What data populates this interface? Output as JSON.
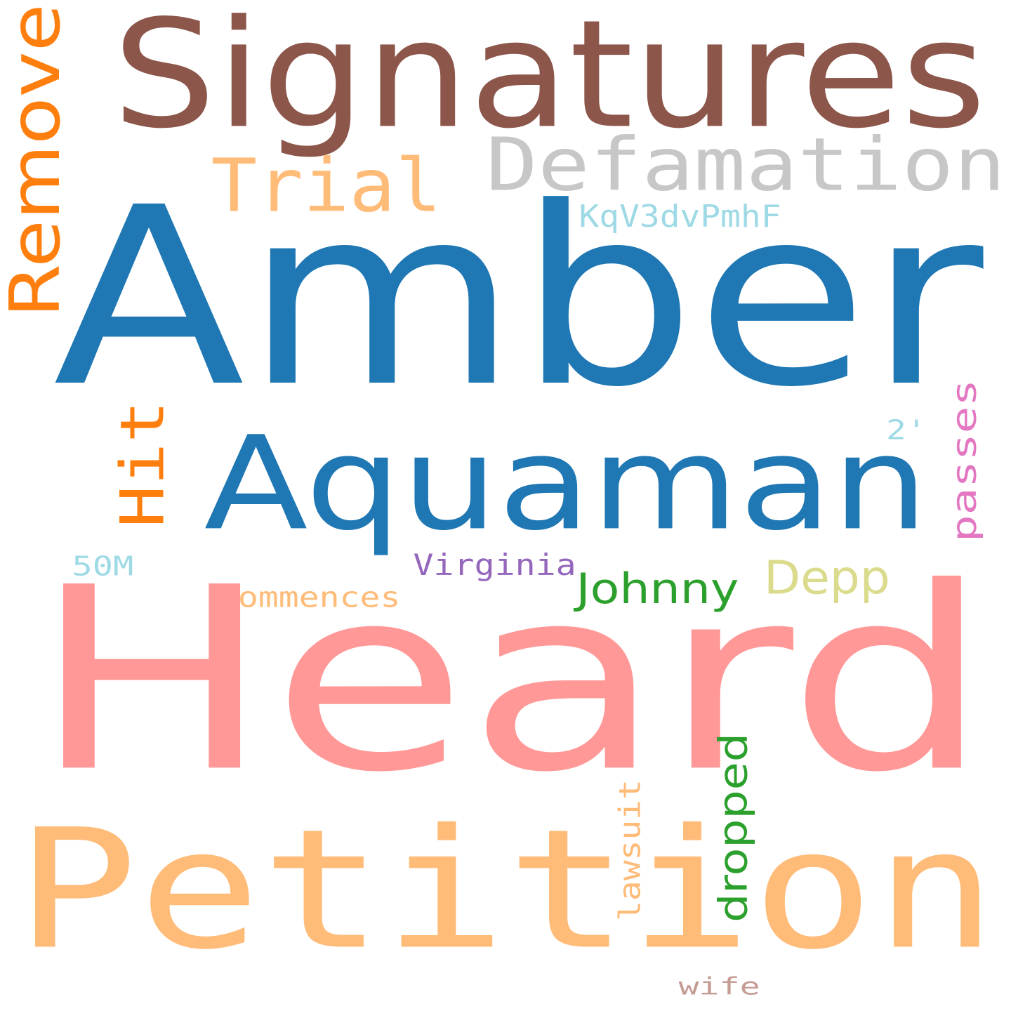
{
  "words": {
    "signatures": {
      "text": "Signatures",
      "color": "#8c564b"
    },
    "remove": {
      "text": "Remove",
      "color": "#ff7f0e"
    },
    "defamation": {
      "text": "Defamation",
      "color": "#c7c7c7"
    },
    "trial": {
      "text": "Trial",
      "color": "#ffbb78"
    },
    "kqv": {
      "text": "KqV3dvPmhF",
      "color": "#9edae5"
    },
    "amber": {
      "text": "Amber",
      "color": "#1f77b4"
    },
    "hit": {
      "text": "Hit",
      "color": "#ff7f0e"
    },
    "aquaman": {
      "text": "Aquaman",
      "color": "#1f77b4"
    },
    "passes": {
      "text": "passes",
      "color": "#e377c2"
    },
    "two": {
      "text": "2'",
      "color": "#9edae5"
    },
    "fiftym": {
      "text": "50M",
      "color": "#9edae5"
    },
    "virginia": {
      "text": "Virginia",
      "color": "#9467bd"
    },
    "johnny": {
      "text": "Johnny",
      "color": "#2ca02c"
    },
    "depp": {
      "text": "Depp",
      "color": "#dbdb8d"
    },
    "commences": {
      "text": "commences",
      "color": "#ffbb78"
    },
    "heard": {
      "text": "Heard",
      "color": "#ff9896"
    },
    "dropped": {
      "text": "dropped",
      "color": "#2ca02c"
    },
    "lawsuit": {
      "text": "lawsuit",
      "color": "#ffbb78"
    },
    "petition": {
      "text": "Petition",
      "color": "#ffbb78"
    },
    "wife": {
      "text": "wife",
      "color": "#c49c94"
    }
  }
}
